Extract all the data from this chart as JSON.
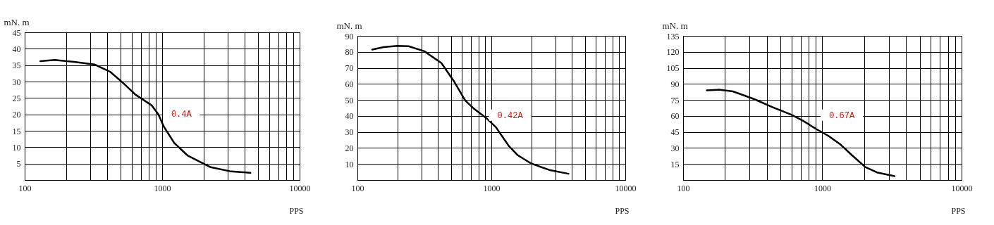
{
  "chart_data": [
    {
      "type": "line",
      "xlabel": "PPS",
      "ylabel": "mN. m",
      "log": "x",
      "grid": true,
      "annotations": [
        "0.4A"
      ],
      "xlim": [
        100,
        10000
      ],
      "xticks": [
        100,
        {
          "value": 200,
          "label": null
        },
        {
          "value": 300,
          "label": null
        },
        {
          "value": 400,
          "label": null
        },
        {
          "value": 500,
          "label": null
        },
        {
          "value": 600,
          "label": null
        },
        {
          "value": 700,
          "label": null
        },
        {
          "value": 800,
          "label": null
        },
        {
          "value": 900,
          "label": null
        },
        1000,
        {
          "value": 2000,
          "label": null
        },
        {
          "value": 3000,
          "label": null
        },
        {
          "value": 4000,
          "label": null
        },
        {
          "value": 5000,
          "label": null
        },
        {
          "value": 6000,
          "label": null
        },
        {
          "value": 7000,
          "label": null
        },
        {
          "value": 8000,
          "label": null
        },
        {
          "value": 9000,
          "label": null
        },
        10000
      ],
      "ylim": [
        0,
        45
      ],
      "yticks": [
        5,
        10,
        15,
        20,
        25,
        30,
        35,
        40,
        45
      ],
      "series": [
        {
          "color": "#000000",
          "x": [
            130,
            165,
            229,
            322,
            421,
            519,
            640,
            836,
            937,
            1031,
            1224,
            1538,
            2253,
            3175,
            4390
          ],
          "values": [
            36.2,
            36.6,
            36.0,
            35.2,
            32.9,
            29.6,
            26.0,
            22.8,
            20.1,
            16.2,
            11.3,
            7.4,
            3.9,
            2.6,
            2.2
          ]
        }
      ]
    },
    {
      "type": "line",
      "xlabel": "PPS",
      "ylabel": "mN. m",
      "log": "x",
      "grid": true,
      "annotations": [
        "0.42A"
      ],
      "xlim": [
        100,
        10000
      ],
      "xticks": [
        100,
        {
          "value": 200,
          "label": null
        },
        {
          "value": 300,
          "label": null
        },
        {
          "value": 400,
          "label": null
        },
        {
          "value": 500,
          "label": null
        },
        {
          "value": 600,
          "label": null
        },
        {
          "value": 700,
          "label": null
        },
        {
          "value": 800,
          "label": null
        },
        {
          "value": 900,
          "label": null
        },
        1000,
        {
          "value": 2000,
          "label": null
        },
        {
          "value": 3000,
          "label": null
        },
        {
          "value": 4000,
          "label": null
        },
        {
          "value": 5000,
          "label": null
        },
        {
          "value": 6000,
          "label": null
        },
        {
          "value": 7000,
          "label": null
        },
        {
          "value": 8000,
          "label": null
        },
        {
          "value": 9000,
          "label": null
        },
        10000
      ],
      "ylim": [
        0,
        90
      ],
      "yticks": [
        10,
        20,
        30,
        40,
        50,
        60,
        70,
        80,
        90
      ],
      "series": [
        {
          "color": "#000000",
          "x": [
            129,
            157,
            198,
            241,
            316,
            424,
            525,
            638,
            746,
            907,
            1081,
            1340,
            1566,
            1981,
            2704,
            3768
          ],
          "values": [
            81.4,
            83.0,
            83.7,
            83.5,
            80.4,
            73.0,
            61.7,
            49.7,
            44.3,
            39.0,
            33.0,
            21.6,
            15.6,
            10.3,
            6.3,
            3.9
          ]
        }
      ]
    },
    {
      "type": "line",
      "xlabel": "PPS",
      "ylabel": "mN. m",
      "log": "x",
      "grid": true,
      "annotations": [
        "0.67A"
      ],
      "xlim": [
        100,
        10000
      ],
      "xticks": [
        100,
        {
          "value": 200,
          "label": null
        },
        {
          "value": 300,
          "label": null
        },
        {
          "value": 400,
          "label": null
        },
        {
          "value": 500,
          "label": null
        },
        {
          "value": 600,
          "label": null
        },
        {
          "value": 700,
          "label": null
        },
        {
          "value": 800,
          "label": null
        },
        {
          "value": 900,
          "label": null
        },
        1000,
        {
          "value": 2000,
          "label": null
        },
        {
          "value": 3000,
          "label": null
        },
        {
          "value": 4000,
          "label": null
        },
        {
          "value": 5000,
          "label": null
        },
        {
          "value": 6000,
          "label": null
        },
        {
          "value": 7000,
          "label": null
        },
        {
          "value": 8000,
          "label": null
        },
        {
          "value": 9000,
          "label": null
        },
        10000
      ],
      "ylim": [
        0,
        135
      ],
      "yticks": [
        15,
        30,
        45,
        60,
        75,
        90,
        105,
        120,
        135
      ],
      "series": [
        {
          "color": "#000000",
          "x": [
            148,
            181,
            228,
            322,
            438,
            595,
            721,
            908,
            1101,
            1334,
            1617,
            2036,
            2467,
            3296
          ],
          "values": [
            84.0,
            84.6,
            83.0,
            75.9,
            68.2,
            61.3,
            55.7,
            47.6,
            41.5,
            33.8,
            23.7,
            12.1,
            7.1,
            3.6
          ]
        }
      ]
    }
  ]
}
